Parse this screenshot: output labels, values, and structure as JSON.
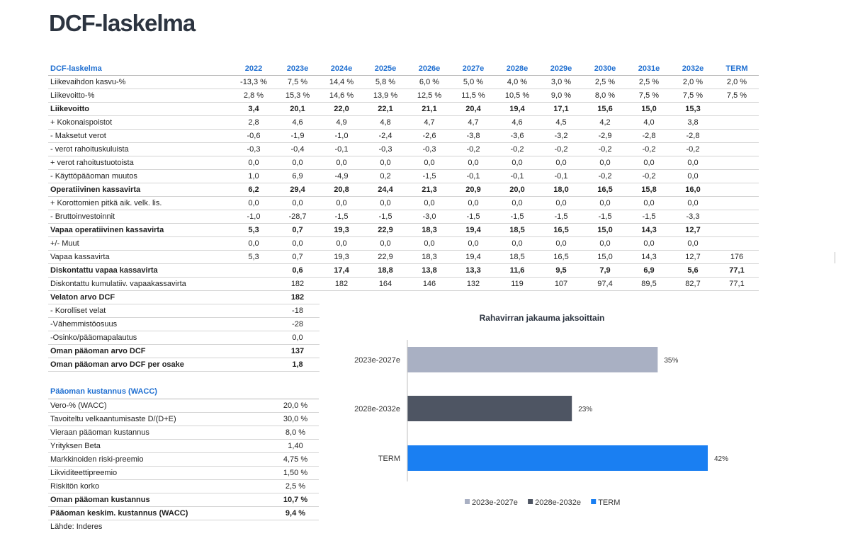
{
  "title": "DCF-laskelma",
  "dcf_table": {
    "header_label": "DCF-laskelma",
    "years": [
      "2022",
      "2023e",
      "2024e",
      "2025e",
      "2026e",
      "2027e",
      "2028e",
      "2029e",
      "2030e",
      "2031e",
      "2032e",
      "TERM"
    ],
    "rows": [
      {
        "label": "Liikevaihdon kasvu-%",
        "bold": false,
        "values": [
          "-13,3 %",
          "7,5 %",
          "14,4 %",
          "5,8 %",
          "6,0 %",
          "5,0 %",
          "4,0 %",
          "3,0 %",
          "2,5 %",
          "2,5 %",
          "2,0 %",
          "2,0 %"
        ]
      },
      {
        "label": "Liikevoitto-%",
        "bold": false,
        "values": [
          "2,8 %",
          "15,3 %",
          "14,6 %",
          "13,9 %",
          "12,5 %",
          "11,5 %",
          "10,5 %",
          "9,0 %",
          "8,0 %",
          "7,5 %",
          "7,5 %",
          "7,5 %"
        ]
      },
      {
        "label": "Liikevoitto",
        "bold": true,
        "values": [
          "3,4",
          "20,1",
          "22,0",
          "22,1",
          "21,1",
          "20,4",
          "19,4",
          "17,1",
          "15,6",
          "15,0",
          "15,3",
          ""
        ]
      },
      {
        "label": "+ Kokonaispoistot",
        "bold": false,
        "values": [
          "2,8",
          "4,6",
          "4,9",
          "4,8",
          "4,7",
          "4,7",
          "4,6",
          "4,5",
          "4,2",
          "4,0",
          "3,8",
          ""
        ]
      },
      {
        "label": "- Maksetut verot",
        "bold": false,
        "values": [
          "-0,6",
          "-1,9",
          "-1,0",
          "-2,4",
          "-2,6",
          "-3,8",
          "-3,6",
          "-3,2",
          "-2,9",
          "-2,8",
          "-2,8",
          ""
        ]
      },
      {
        "label": "- verot rahoituskuluista",
        "bold": false,
        "values": [
          "-0,3",
          "-0,4",
          "-0,1",
          "-0,3",
          "-0,3",
          "-0,2",
          "-0,2",
          "-0,2",
          "-0,2",
          "-0,2",
          "-0,2",
          ""
        ]
      },
      {
        "label": "+ verot rahoitustuotoista",
        "bold": false,
        "values": [
          "0,0",
          "0,0",
          "0,0",
          "0,0",
          "0,0",
          "0,0",
          "0,0",
          "0,0",
          "0,0",
          "0,0",
          "0,0",
          ""
        ]
      },
      {
        "label": "- Käyttöpääoman muutos",
        "bold": false,
        "values": [
          "1,0",
          "6,9",
          "-4,9",
          "0,2",
          "-1,5",
          "-0,1",
          "-0,1",
          "-0,1",
          "-0,2",
          "-0,2",
          "0,0",
          ""
        ]
      },
      {
        "label": "Operatiivinen kassavirta",
        "bold": true,
        "values": [
          "6,2",
          "29,4",
          "20,8",
          "24,4",
          "21,3",
          "20,9",
          "20,0",
          "18,0",
          "16,5",
          "15,8",
          "16,0",
          ""
        ]
      },
      {
        "label": "+ Korottomien pitkä aik. velk. lis.",
        "bold": false,
        "values": [
          "0,0",
          "0,0",
          "0,0",
          "0,0",
          "0,0",
          "0,0",
          "0,0",
          "0,0",
          "0,0",
          "0,0",
          "0,0",
          ""
        ]
      },
      {
        "label": "- Bruttoinvestoinnit",
        "bold": false,
        "values": [
          "-1,0",
          "-28,7",
          "-1,5",
          "-1,5",
          "-3,0",
          "-1,5",
          "-1,5",
          "-1,5",
          "-1,5",
          "-1,5",
          "-3,3",
          ""
        ]
      },
      {
        "label": "Vapaa operatiivinen kassavirta",
        "bold": true,
        "values": [
          "5,3",
          "0,7",
          "19,3",
          "22,9",
          "18,3",
          "19,4",
          "18,5",
          "16,5",
          "15,0",
          "14,3",
          "12,7",
          ""
        ]
      },
      {
        "label": "+/- Muut",
        "bold": false,
        "values": [
          "0,0",
          "0,0",
          "0,0",
          "0,0",
          "0,0",
          "0,0",
          "0,0",
          "0,0",
          "0,0",
          "0,0",
          "0,0",
          ""
        ]
      },
      {
        "label": "Vapaa kassavirta",
        "bold": false,
        "values": [
          "5,3",
          "0,7",
          "19,3",
          "22,9",
          "18,3",
          "19,4",
          "18,5",
          "16,5",
          "15,0",
          "14,3",
          "12,7",
          "176"
        ]
      },
      {
        "label": "Diskontattu vapaa kassavirta",
        "bold": true,
        "values": [
          "",
          "0,6",
          "17,4",
          "18,8",
          "13,8",
          "13,3",
          "11,6",
          "9,5",
          "7,9",
          "6,9",
          "5,6",
          "77,1"
        ]
      },
      {
        "label": "Diskontattu kumulatiiv. vapaakassavirta",
        "bold": false,
        "values": [
          "",
          "182",
          "182",
          "164",
          "146",
          "132",
          "119",
          "107",
          "97,4",
          "89,5",
          "82,7",
          "77,1"
        ]
      }
    ],
    "summary_rows": [
      {
        "label": "Velaton arvo DCF",
        "bold": true,
        "value": "182"
      },
      {
        "label": "- Korolliset velat",
        "bold": false,
        "value": "-18"
      },
      {
        "label": "-Vähemmistöosuus",
        "bold": false,
        "value": "-28"
      },
      {
        "label": "-Osinko/pääomapalautus",
        "bold": false,
        "value": "0,0"
      },
      {
        "label": "Oman pääoman arvo DCF",
        "bold": true,
        "value": "137"
      },
      {
        "label": "Oman pääoman arvo DCF per osake",
        "bold": true,
        "value": "1,8"
      }
    ]
  },
  "wacc": {
    "title": "Pääoman kustannus (WACC)",
    "rows": [
      {
        "label": "Vero-% (WACC)",
        "bold": false,
        "value": "20,0 %"
      },
      {
        "label": "Tavoiteltu velkaantumisaste D/(D+E)",
        "bold": false,
        "value": "30,0 %"
      },
      {
        "label": "Vieraan pääoman kustannus",
        "bold": false,
        "value": "8,0 %"
      },
      {
        "label": "Yrityksen Beta",
        "bold": false,
        "value": "1,40"
      },
      {
        "label": "Markkinoiden riski-preemio",
        "bold": false,
        "value": "4,75 %"
      },
      {
        "label": "Likviditeettipreemio",
        "bold": false,
        "value": "1,50 %"
      },
      {
        "label": "Riskitön korko",
        "bold": false,
        "value": "2,5 %"
      },
      {
        "label": "Oman pääoman kustannus",
        "bold": true,
        "value": "10,7 %"
      },
      {
        "label": "Pääoman keskim. kustannus (WACC)",
        "bold": true,
        "value": "9,4 %"
      }
    ]
  },
  "source": "Lähde: Inderes",
  "chart_data": {
    "type": "bar",
    "orientation": "horizontal",
    "title": "Rahavirran jakauma jaksoittain",
    "categories": [
      "2023e-2027e",
      "2028e-2032e",
      "TERM"
    ],
    "values": [
      35,
      23,
      42
    ],
    "data_labels": [
      "35%",
      "23%",
      "42%"
    ],
    "colors": [
      "#a9b0c3",
      "#4e5563",
      "#1a7ff2"
    ],
    "legend": [
      "2023e-2027e",
      "2028e-2032e",
      "TERM"
    ],
    "legend_position": "bottom",
    "xlim": [
      0,
      42
    ]
  }
}
